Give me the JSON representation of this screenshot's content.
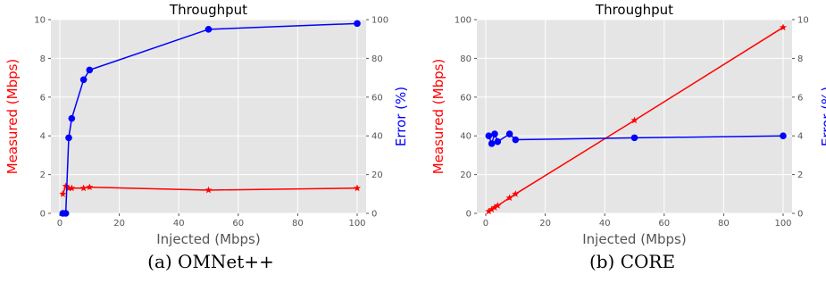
{
  "colors": {
    "measured": "#ff0000",
    "error": "#0000ff",
    "plot_bg": "#e5e5e5",
    "grid": "#ffffff",
    "axis_label": "#555555",
    "tick_label": "#555555"
  },
  "chart_data": [
    {
      "type": "line",
      "title": "Throughput",
      "caption": "(a) OMNet++",
      "xlabel": "Injected (Mbps)",
      "ylabel": "Measured (Mbps)",
      "y2label": "Error (%)",
      "xlim": [
        -3,
        103
      ],
      "ylim": [
        0,
        10
      ],
      "y2lim": [
        0,
        100
      ],
      "xticks": [
        0,
        20,
        40,
        60,
        80,
        100
      ],
      "yticks": [
        0,
        2,
        4,
        6,
        8,
        10
      ],
      "y2ticks": [
        0,
        20,
        40,
        60,
        80,
        100
      ],
      "grid": true,
      "series": [
        {
          "name": "Measured (Mbps)",
          "axis": "left",
          "color": "#ff0000",
          "marker": "star",
          "x": [
            1,
            2,
            3,
            4,
            8,
            10,
            50,
            100
          ],
          "values": [
            1.0,
            1.4,
            1.3,
            1.3,
            1.3,
            1.35,
            1.2,
            1.3
          ]
        },
        {
          "name": "Error (%)",
          "axis": "right",
          "color": "#0000ff",
          "marker": "circle",
          "x": [
            1,
            2,
            3,
            4,
            8,
            10,
            50,
            100
          ],
          "values": [
            0,
            0,
            39,
            49,
            69,
            74,
            95,
            98
          ]
        }
      ]
    },
    {
      "type": "line",
      "title": "Throughput",
      "caption": "(b) CORE",
      "xlabel": "Injected (Mbps)",
      "ylabel": "Measured (Mbps)",
      "y2label": "Error (%)",
      "xlim": [
        -3,
        103
      ],
      "ylim": [
        0,
        100
      ],
      "y2lim": [
        0,
        10
      ],
      "xticks": [
        0,
        20,
        40,
        60,
        80,
        100
      ],
      "yticks": [
        0,
        20,
        40,
        60,
        80,
        100
      ],
      "y2ticks": [
        0,
        2,
        4,
        6,
        8,
        10
      ],
      "grid": true,
      "series": [
        {
          "name": "Measured (Mbps)",
          "axis": "left",
          "color": "#ff0000",
          "marker": "star",
          "x": [
            1,
            2,
            3,
            4,
            8,
            10,
            50,
            100
          ],
          "values": [
            1,
            2,
            3,
            4,
            8,
            10,
            48,
            96
          ]
        },
        {
          "name": "Error (%)",
          "axis": "right",
          "color": "#0000ff",
          "marker": "circle",
          "x": [
            1,
            2,
            3,
            4,
            8,
            10,
            50,
            100
          ],
          "values": [
            4.0,
            3.6,
            4.1,
            3.7,
            4.1,
            3.8,
            3.9,
            4.0
          ]
        }
      ]
    }
  ]
}
